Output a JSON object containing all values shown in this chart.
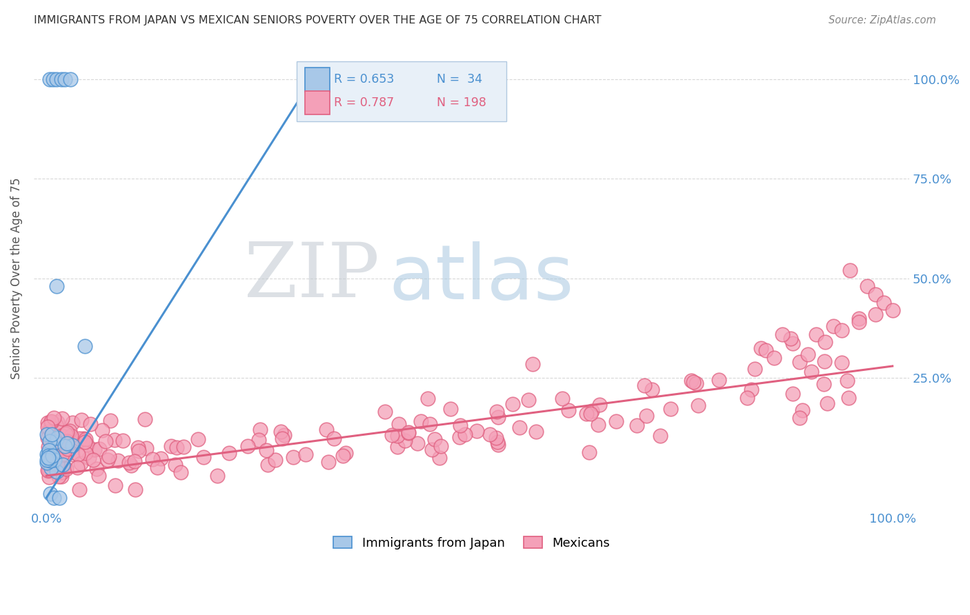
{
  "title": "IMMIGRANTS FROM JAPAN VS MEXICAN SENIORS POVERTY OVER THE AGE OF 75 CORRELATION CHART",
  "source": "Source: ZipAtlas.com",
  "ylabel": "Seniors Poverty Over the Age of 75",
  "japan_color": "#a8c8e8",
  "mexico_color": "#f4a0b8",
  "japan_edge_color": "#4a90d0",
  "mexico_edge_color": "#e06080",
  "japan_line_color": "#4a90d0",
  "mexico_line_color": "#e06080",
  "japan_R": 0.653,
  "japan_N": 34,
  "mexico_R": 0.787,
  "mexico_N": 198,
  "watermark_zip": "ZIP",
  "watermark_atlas": "atlas",
  "background_color": "#ffffff",
  "grid_color": "#d8d8d8",
  "legend_box_color": "#e8f0f8",
  "legend_box_edge": "#b0c8e0",
  "tick_label_color": "#4a90d0",
  "title_color": "#333333",
  "source_color": "#888888",
  "ylabel_color": "#555555"
}
